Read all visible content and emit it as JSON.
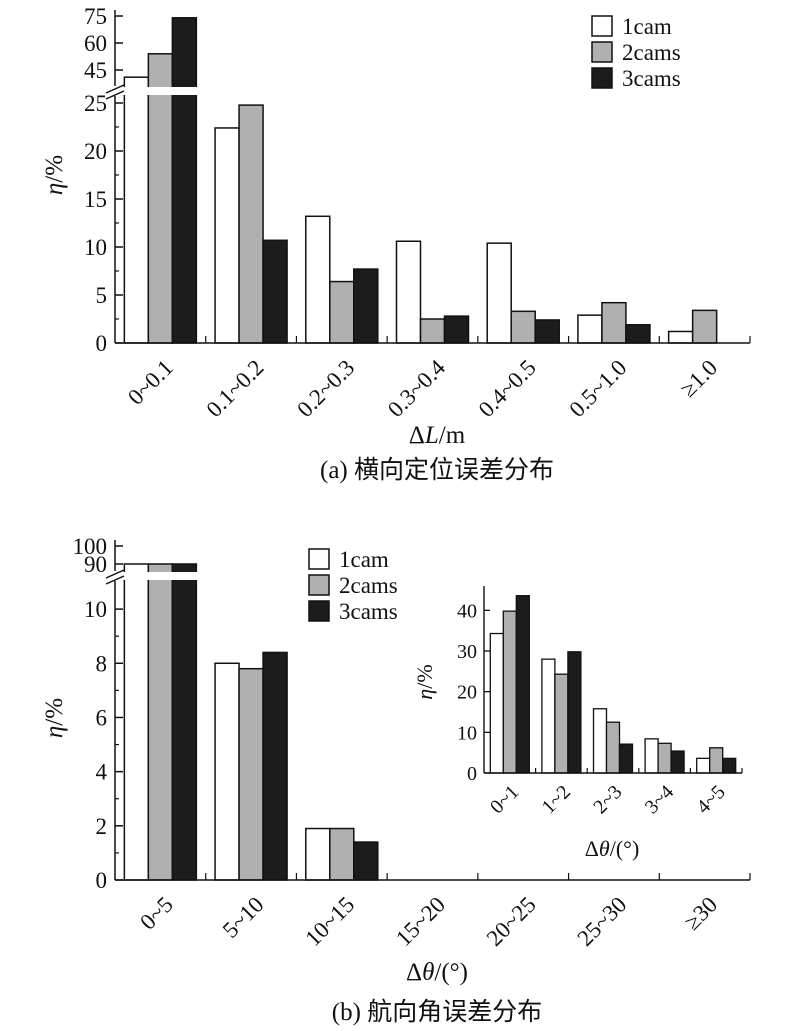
{
  "colors": {
    "1cam": "#ffffff",
    "2cams": "#b0b0b0",
    "3cams": "#1c1c1c",
    "stroke": "#111111"
  },
  "chart_data": [
    {
      "type": "bar",
      "caption": "(a) 横向定位误差分布",
      "xlabel": "ΔL/m",
      "ylabel": "η/%",
      "axis_break": true,
      "ylim_lower": [
        0,
        25
      ],
      "yticks_lower": [
        "0",
        "5",
        "10",
        "15",
        "20",
        "25"
      ],
      "ylim_upper": [
        45,
        75
      ],
      "yticks_upper": [
        "45",
        "60",
        "75"
      ],
      "categories": [
        "0~0.1",
        "0.1~0.2",
        "0.2~0.3",
        "0.3~0.4",
        "0.4~0.5",
        "0.5~1.0",
        "≥1.0"
      ],
      "series": [
        {
          "name": "1cam",
          "values": [
            41,
            22.4,
            13.2,
            10.6,
            10.4,
            2.9,
            1.2
          ]
        },
        {
          "name": "2cams",
          "values": [
            54,
            25.5,
            6.4,
            2.5,
            3.3,
            4.2,
            3.4
          ]
        },
        {
          "name": "3cams",
          "values": [
            74,
            10.7,
            7.7,
            2.8,
            2.4,
            1.9,
            0
          ]
        }
      ],
      "legend": {
        "position": "top-right",
        "labels": [
          "1cam",
          "2cams",
          "3cams"
        ]
      }
    },
    {
      "type": "bar",
      "caption": "(b) 航向角误差分布",
      "xlabel": "Δθ/(°)",
      "ylabel": "η/%",
      "axis_break": true,
      "ylim_lower": [
        0,
        11
      ],
      "yticks_lower": [
        "0",
        "2",
        "4",
        "6",
        "8",
        "10"
      ],
      "ylim_upper": [
        90,
        100
      ],
      "yticks_upper": [
        "90",
        "100"
      ],
      "categories": [
        "0~5",
        "5~10",
        "10~15",
        "15~20",
        "20~25",
        "25~30",
        "≥30"
      ],
      "series": [
        {
          "name": "1cam",
          "values": [
            90,
            8.0,
            1.9,
            0,
            0,
            0,
            0
          ]
        },
        {
          "name": "2cams",
          "values": [
            90,
            7.8,
            1.9,
            0,
            0,
            0,
            0
          ]
        },
        {
          "name": "3cams",
          "values": [
            90,
            8.4,
            1.4,
            0,
            0,
            0,
            0
          ]
        }
      ],
      "legend": {
        "position": "top-left",
        "labels": [
          "1cam",
          "2cams",
          "3cams"
        ]
      },
      "inset": {
        "type": "bar",
        "xlabel": "Δθ/(°)",
        "ylabel": "η/%",
        "ylim": [
          0,
          45
        ],
        "yticks": [
          "0",
          "10",
          "20",
          "30",
          "40"
        ],
        "categories": [
          "0~1",
          "1~2",
          "2~3",
          "3~4",
          "4~5"
        ],
        "series": [
          {
            "name": "1cam",
            "values": [
              34.3,
              28,
              15.8,
              8.4,
              3.6
            ]
          },
          {
            "name": "2cams",
            "values": [
              39.8,
              24.3,
              12.5,
              7.3,
              6.2
            ]
          },
          {
            "name": "3cams",
            "values": [
              43.6,
              29.8,
              7.1,
              5.4,
              3.6
            ]
          }
        ]
      }
    }
  ]
}
